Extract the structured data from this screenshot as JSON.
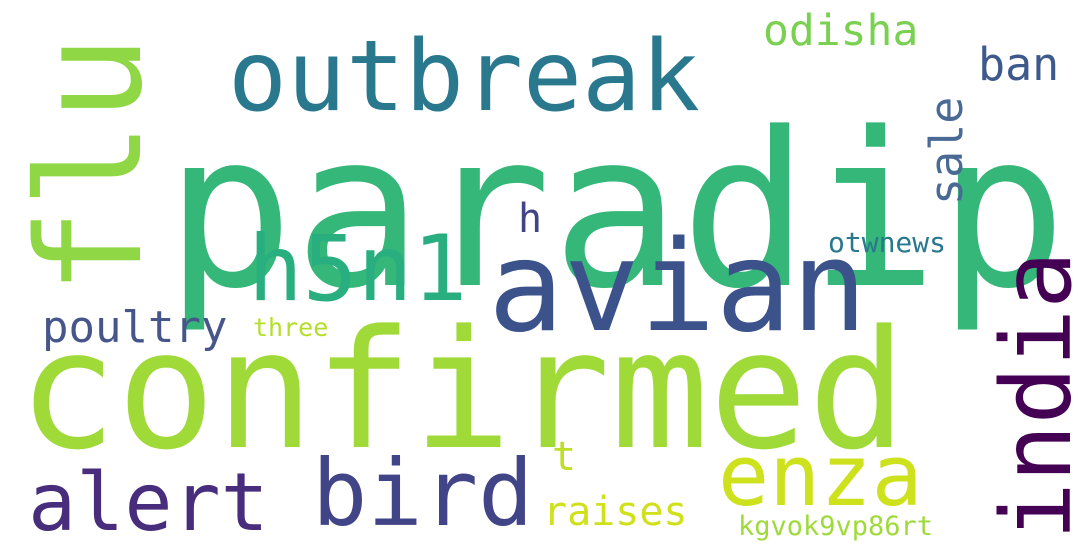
{
  "words": [
    {
      "text": "paradip",
      "color": "#35b779"
    },
    {
      "text": "flu",
      "color": "#8fd744"
    },
    {
      "text": "outbreak",
      "color": "#2a788e"
    },
    {
      "text": "odisha",
      "color": "#7ad151"
    },
    {
      "text": "ban",
      "color": "#3e5a8c"
    },
    {
      "text": "sale",
      "color": "#4a6a96"
    },
    {
      "text": "h5n1",
      "color": "#29af7f"
    },
    {
      "text": "h",
      "color": "#414487"
    },
    {
      "text": "avian",
      "color": "#3b528b"
    },
    {
      "text": "otwnews",
      "color": "#2a788e"
    },
    {
      "text": "india",
      "color": "#440154"
    },
    {
      "text": "poultry",
      "color": "#46558a"
    },
    {
      "text": "three",
      "color": "#b5de2b"
    },
    {
      "text": "confirmed",
      "color": "#a0da39"
    },
    {
      "text": "t",
      "color": "#bddf26"
    },
    {
      "text": "alert",
      "color": "#472d7b"
    },
    {
      "text": "bird",
      "color": "#414487"
    },
    {
      "text": "enza",
      "color": "#cde11d"
    },
    {
      "text": "raises",
      "color": "#d0e11c"
    },
    {
      "text": "kgvok9vp86rt",
      "color": "#9fda3a"
    }
  ]
}
